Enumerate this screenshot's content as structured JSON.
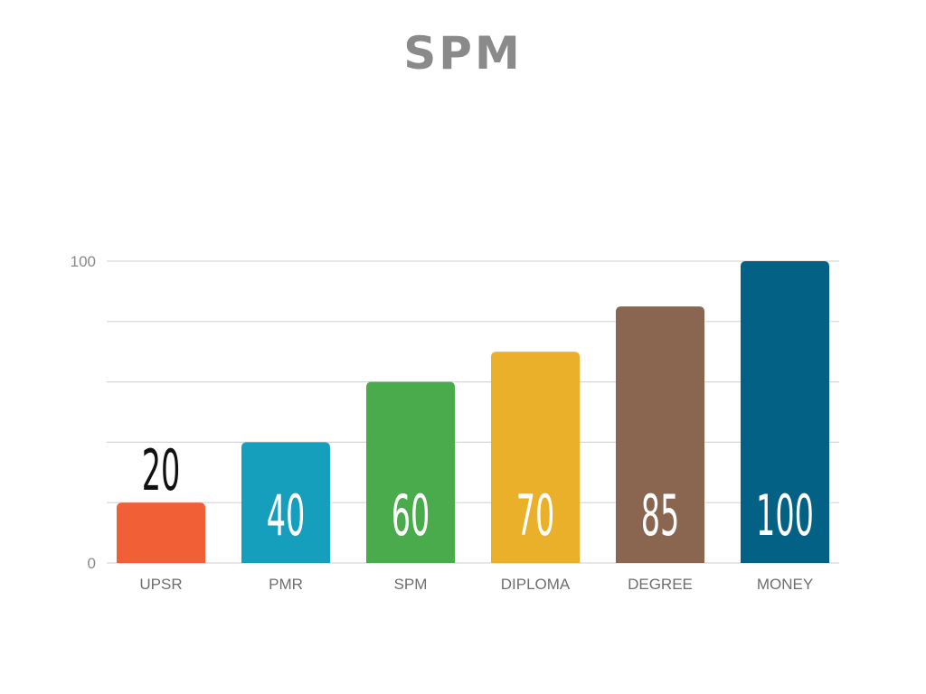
{
  "slide": {
    "title": "SPM"
  },
  "chart_data": {
    "type": "bar",
    "title": "",
    "xlabel": "",
    "ylabel": "",
    "categories": [
      "UPSR",
      "PMR",
      "SPM",
      "DIPLOMA",
      "DEGREE",
      "MONEY"
    ],
    "values": [
      20,
      40,
      60,
      70,
      85,
      100
    ],
    "ylim": [
      0,
      100
    ],
    "yticks": [
      0,
      100
    ],
    "ytick_labels": [
      "0",
      "100"
    ],
    "gridlines": [
      20,
      40,
      60,
      80,
      100
    ],
    "grid": true,
    "legend": "none",
    "bar_colors": [
      "#f05f35",
      "#169fbd",
      "#49ab4b",
      "#ebb02a",
      "#8a6651",
      "#036185"
    ],
    "value_label_colors": [
      "#111111",
      "#ffffff",
      "#ffffff",
      "#ffffff",
      "#ffffff",
      "#ffffff"
    ],
    "grid_color": "#d6d6d6"
  }
}
